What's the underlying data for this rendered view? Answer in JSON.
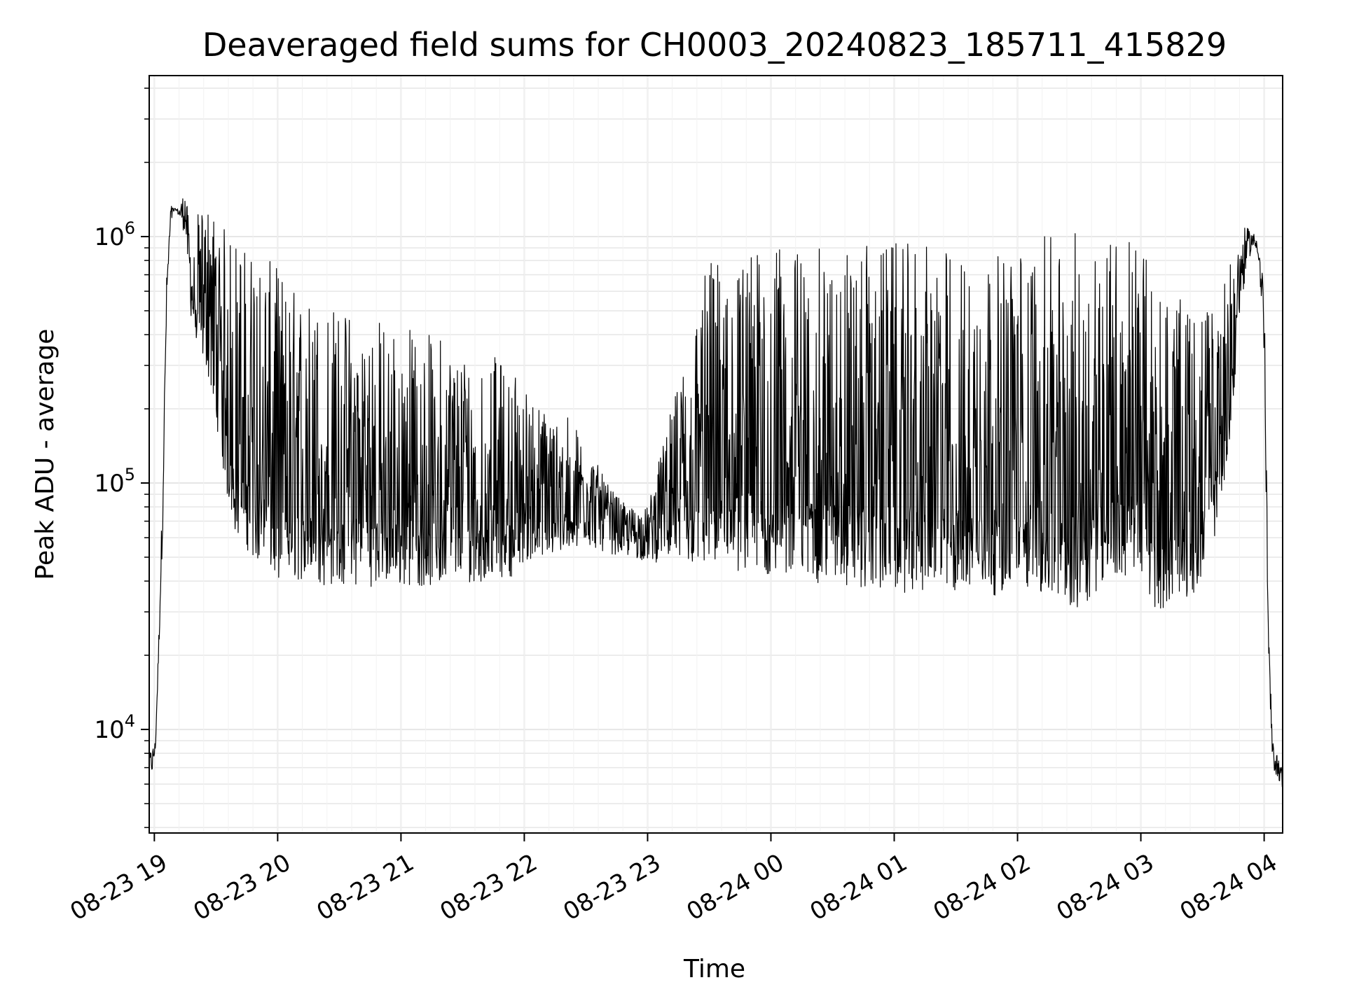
{
  "chart_data": {
    "type": "line",
    "title": "Deaveraged field sums for CH0003_20240823_185711_415829",
    "xlabel": "Time",
    "ylabel": "Peak ADU - average",
    "yscale": "log",
    "ylim": [
      3800,
      4500000
    ],
    "xlim": [
      "2024-08-23 18:57:30",
      "2024-08-24 04:09:00"
    ],
    "grid": "on (major and minor)",
    "line_color": "#000000",
    "x_ticks": [
      {
        "label": "08-23 19",
        "t": "2024-08-23 19:00"
      },
      {
        "label": "08-23 20",
        "t": "2024-08-23 20:00"
      },
      {
        "label": "08-23 21",
        "t": "2024-08-23 21:00"
      },
      {
        "label": "08-23 22",
        "t": "2024-08-23 22:00"
      },
      {
        "label": "08-23 23",
        "t": "2024-08-23 23:00"
      },
      {
        "label": "08-24 00",
        "t": "2024-08-24 00:00"
      },
      {
        "label": "08-24 01",
        "t": "2024-08-24 01:00"
      },
      {
        "label": "08-24 02",
        "t": "2024-08-24 02:00"
      },
      {
        "label": "08-24 03",
        "t": "2024-08-24 03:00"
      },
      {
        "label": "08-24 04",
        "t": "2024-08-24 04:00"
      }
    ],
    "y_ticks": [
      {
        "base": "10",
        "exp": "4",
        "value": 10000
      },
      {
        "base": "10",
        "exp": "5",
        "value": 100000
      },
      {
        "base": "10",
        "exp": "6",
        "value": 1000000
      }
    ],
    "series": [
      {
        "x": [
          "2024-08-23 18:57:30",
          "2024-08-23 18:59:00",
          "2024-08-23 19:00:30",
          "2024-08-23 19:02:00",
          "2024-08-23 19:04:00",
          "2024-08-23 19:06:00",
          "2024-08-23 19:08:00",
          "2024-08-23 19:10:00",
          "2024-08-23 19:12:00",
          "2024-08-23 19:15:00",
          "2024-08-23 19:17:00",
          "2024-08-23 19:18:00",
          "2024-08-23 19:19:00",
          "2024-08-23 19:20:00",
          "2024-08-23 19:22:00",
          "2024-08-23 19:25:00",
          "2024-08-23 19:28:00",
          "2024-08-23 19:30:00",
          "2024-08-23 19:33:00",
          "2024-08-23 19:36:00",
          "2024-08-23 19:40:00",
          "2024-08-23 19:44:00",
          "2024-08-23 19:48:00",
          "2024-08-23 19:52:00",
          "2024-08-23 19:56:00",
          "2024-08-23 20:00:00",
          "2024-08-23 20:10:00",
          "2024-08-23 20:20:00",
          "2024-08-23 20:40:00",
          "2024-08-23 21:00:00",
          "2024-08-23 21:20:00",
          "2024-08-23 21:40:00",
          "2024-08-23 21:55:00",
          "2024-08-23 22:00:00",
          "2024-08-23 22:10:00",
          "2024-08-23 22:20:00",
          "2024-08-23 22:30:00",
          "2024-08-23 22:40:00",
          "2024-08-23 22:50:00",
          "2024-08-23 23:00:00",
          "2024-08-23 23:30:00",
          "2024-08-24 00:00:00",
          "2024-08-24 00:30:00",
          "2024-08-24 01:00:00",
          "2024-08-24 01:30:00",
          "2024-08-24 01:50:00",
          "2024-08-24 02:00:00",
          "2024-08-24 02:10:00",
          "2024-08-24 02:20:00",
          "2024-08-24 02:30:00",
          "2024-08-24 02:40:00",
          "2024-08-24 02:50:00",
          "2024-08-24 03:00:00",
          "2024-08-24 03:05:00",
          "2024-08-24 03:15:00",
          "2024-08-24 03:25:00",
          "2024-08-24 03:30:00",
          "2024-08-24 03:35:00",
          "2024-08-24 03:40:00",
          "2024-08-24 03:45:00",
          "2024-08-24 03:48:00",
          "2024-08-24 03:51:00",
          "2024-08-24 03:54:00",
          "2024-08-24 03:57:00",
          "2024-08-24 04:00:00",
          "2024-08-24 04:02:00",
          "2024-08-24 04:04:00",
          "2024-08-24 04:06:00",
          "2024-08-24 04:08:00",
          "2024-08-24 04:09:00"
        ],
        "y_low": [
          7000,
          6500,
          8000,
          18000,
          60000,
          500000,
          1100000,
          1300000,
          1200000,
          1000000,
          600000,
          450000,
          400000,
          380000,
          350000,
          300000,
          230000,
          180000,
          120000,
          80000,
          60000,
          55000,
          50000,
          45000,
          42000,
          40000,
          40000,
          38000,
          38000,
          38000,
          38000,
          40000,
          42000,
          48000,
          50000,
          52000,
          55000,
          52000,
          50000,
          48000,
          45000,
          42000,
          38000,
          36000,
          35000,
          35000,
          38000,
          36000,
          32000,
          30000,
          38000,
          40000,
          45000,
          30000,
          32000,
          35000,
          42000,
          55000,
          90000,
          200000,
          450000,
          700000,
          900000,
          850000,
          300000,
          20000,
          7000,
          6500,
          6000,
          5500
        ],
        "y_high": [
          8000,
          8500,
          9000,
          22000,
          100000,
          700000,
          1350000,
          1300000,
          1300000,
          1600000,
          1100000,
          900000,
          700000,
          1300000,
          1200000,
          1400000,
          1300000,
          1200000,
          1100000,
          1100000,
          1000000,
          950000,
          900000,
          850000,
          800000,
          750000,
          600000,
          550000,
          500000,
          450000,
          400000,
          350000,
          300000,
          250000,
          200000,
          200000,
          150000,
          100000,
          80000,
          80000,
          850000,
          900000,
          900000,
          950000,
          900000,
          850000,
          900000,
          1000000,
          1000000,
          1100000,
          1100000,
          1100000,
          1000000,
          700000,
          600000,
          500000,
          500000,
          550000,
          650000,
          900000,
          1000000,
          1100000,
          1050000,
          1000000,
          700000,
          30000,
          9000,
          8000,
          7500,
          6500
        ]
      }
    ]
  }
}
